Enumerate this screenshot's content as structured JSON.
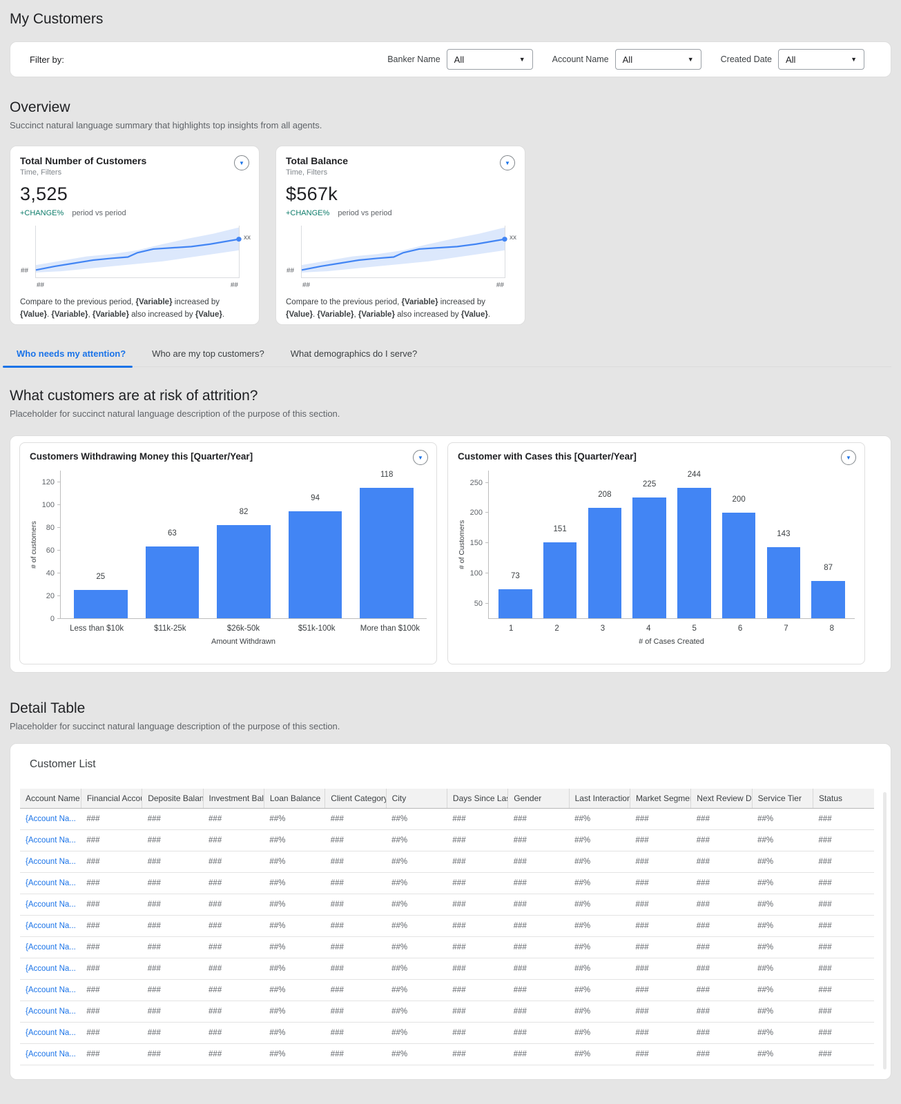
{
  "page": {
    "title": "My Customers"
  },
  "palette": {
    "accent_blue": "#4285f4",
    "link_blue": "#1a73e8",
    "change_teal": "#0e7c6b",
    "band_blue": "#dce8fc"
  },
  "filter_bar": {
    "label": "Filter by:",
    "filters": [
      {
        "label": "Banker Name",
        "value": "All"
      },
      {
        "label": "Account Name",
        "value": "All"
      },
      {
        "label": "Created Date",
        "value": "All"
      }
    ]
  },
  "overview": {
    "heading": "Overview",
    "subtitle": "Succinct natural language summary that highlights top insights from all agents.",
    "cards": [
      {
        "title": "Total Number of Customers",
        "subtitle": "Time, Filters",
        "value": "3,525",
        "change": "+CHANGE%",
        "change_caption": "period vs period",
        "y_label": "##",
        "x_left": "##",
        "x_right": "##",
        "endpoint_label": "xx",
        "footer": "Compare to the previous period, {Variable} increased by {Value}. {Variable}, {Variable} also increased by {Value}."
      },
      {
        "title": "Total Balance",
        "subtitle": "Time, Filters",
        "value": "$567k",
        "change": "+CHANGE%",
        "change_caption": "period vs period",
        "y_label": "##",
        "x_left": "##",
        "x_right": "##",
        "endpoint_label": "xx",
        "footer": "Compare to the previous period, {Variable} increased by {Value}. {Variable}, {Variable} also increased by {Value}."
      }
    ]
  },
  "tabs": [
    {
      "label": "Who needs my attention?",
      "active": true
    },
    {
      "label": "Who are my top customers?",
      "active": false
    },
    {
      "label": "What demographics do I serve?",
      "active": false
    }
  ],
  "attrition": {
    "heading": "What customers are at risk of attrition?",
    "subtitle": "Placeholder for succinct natural language description of the purpose of this section."
  },
  "chart_data": [
    {
      "type": "bar",
      "title": "Customers Withdrawing Money this [Quarter/Year]",
      "categories": [
        "Less than $10k",
        "$11k-25k",
        "$26k-50k",
        "$51k-100k",
        "More than $100k"
      ],
      "values": [
        25,
        63,
        82,
        94,
        118
      ],
      "xlabel": "Amount Withdrawn",
      "ylabel": "# of customers",
      "yticks": [
        0,
        20,
        40,
        60,
        80,
        100,
        120
      ],
      "ylim": [
        0,
        130
      ],
      "grid": false,
      "legend": "none",
      "bar_color": "#4285f4"
    },
    {
      "type": "bar",
      "title": "Customer with Cases this [Quarter/Year]",
      "categories": [
        "1",
        "2",
        "3",
        "4",
        "5",
        "6",
        "7",
        "8"
      ],
      "values": [
        73,
        151,
        208,
        225,
        244,
        200,
        143,
        87
      ],
      "xlabel": "# of Cases Created",
      "ylabel": "# of Customers",
      "yticks": [
        50,
        100,
        150,
        200,
        250
      ],
      "ylim": [
        25,
        270
      ],
      "grid": false,
      "legend": "none",
      "bar_color": "#4285f4"
    }
  ],
  "detail": {
    "heading": "Detail Table",
    "subtitle": "Placeholder for succinct natural language description of the purpose of this section.",
    "card_title": "Customer List"
  },
  "table": {
    "columns": [
      "Account Name",
      "Financial Accou",
      "Deposite Balanc",
      "Investment Bala",
      "Loan Balance",
      "Client Category",
      "City",
      "Days Since Last",
      "Gender",
      "Last Interaction",
      "Market Segmen",
      "Next Review Dat",
      "Service Tier",
      "Status"
    ],
    "rows": [
      [
        "{Account Na...",
        "###",
        "###",
        "###",
        "##%",
        "###",
        "##%",
        "###",
        "###",
        "##%",
        "###",
        "###",
        "##%",
        "###"
      ],
      [
        "{Account Na...",
        "###",
        "###",
        "###",
        "##%",
        "###",
        "##%",
        "###",
        "###",
        "##%",
        "###",
        "###",
        "##%",
        "###"
      ],
      [
        "{Account Na...",
        "###",
        "###",
        "###",
        "##%",
        "###",
        "##%",
        "###",
        "###",
        "##%",
        "###",
        "###",
        "##%",
        "###"
      ],
      [
        "{Account Na...",
        "###",
        "###",
        "###",
        "##%",
        "###",
        "##%",
        "###",
        "###",
        "##%",
        "###",
        "###",
        "##%",
        "###"
      ],
      [
        "{Account Na...",
        "###",
        "###",
        "###",
        "##%",
        "###",
        "##%",
        "###",
        "###",
        "##%",
        "###",
        "###",
        "##%",
        "###"
      ],
      [
        "{Account Na...",
        "###",
        "###",
        "###",
        "##%",
        "###",
        "##%",
        "###",
        "###",
        "##%",
        "###",
        "###",
        "##%",
        "###"
      ],
      [
        "{Account Na...",
        "###",
        "###",
        "###",
        "##%",
        "###",
        "##%",
        "###",
        "###",
        "##%",
        "###",
        "###",
        "##%",
        "###"
      ],
      [
        "{Account Na...",
        "###",
        "###",
        "###",
        "##%",
        "###",
        "##%",
        "###",
        "###",
        "##%",
        "###",
        "###",
        "##%",
        "###"
      ],
      [
        "{Account Na...",
        "###",
        "###",
        "###",
        "##%",
        "###",
        "##%",
        "###",
        "###",
        "##%",
        "###",
        "###",
        "##%",
        "###"
      ],
      [
        "{Account Na...",
        "###",
        "###",
        "###",
        "##%",
        "###",
        "##%",
        "###",
        "###",
        "##%",
        "###",
        "###",
        "##%",
        "###"
      ],
      [
        "{Account Na...",
        "###",
        "###",
        "###",
        "##%",
        "###",
        "##%",
        "###",
        "###",
        "##%",
        "###",
        "###",
        "##%",
        "###"
      ],
      [
        "{Account Na...",
        "###",
        "###",
        "###",
        "##%",
        "###",
        "##%",
        "###",
        "###",
        "##%",
        "###",
        "###",
        "##%",
        "###"
      ]
    ]
  }
}
